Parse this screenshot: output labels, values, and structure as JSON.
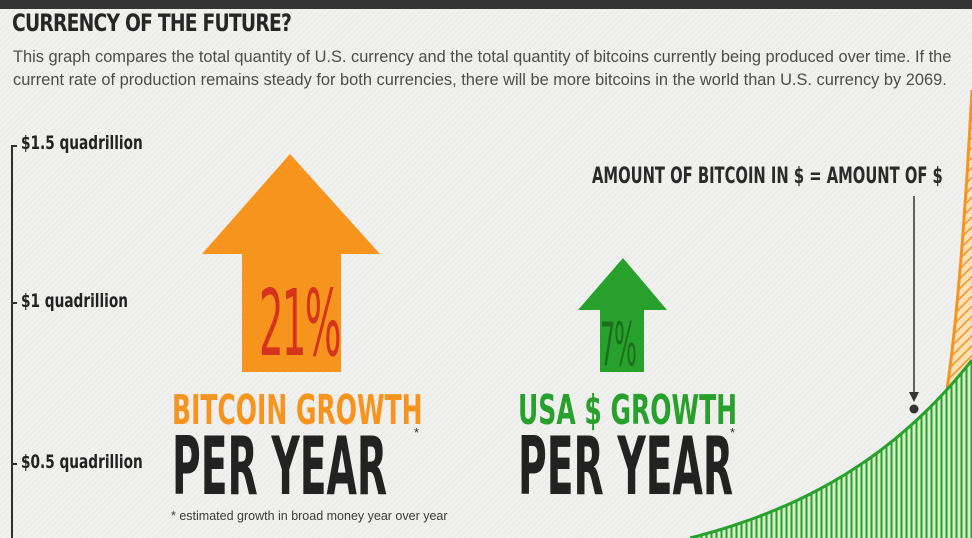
{
  "title": "CURRENCY OF THE FUTURE?",
  "description": "This graph compares the total quantity of U.S. currency and the total quantity of bitcoins currently being produced over time. If the current rate of production remains steady for both currencies, there will be more bitcoins in the world than U.S. currency by 2069.",
  "colors": {
    "bitcoin": "#f7941d",
    "usd": "#27a12b",
    "text": "#222222"
  },
  "chart_data": {
    "type": "area",
    "title": "CURRENCY OF THE FUTURE?",
    "y_ticks": [
      "$1.5 quadrillion",
      "$1 quadrillion",
      "$0.5 quadrillion"
    ],
    "y_tick_values": [
      1.5,
      1.0,
      0.5
    ],
    "ylim": [
      0.3,
      1.7
    ],
    "series": [
      {
        "name": "BITCOIN",
        "growth": "21%",
        "color": "#f7941d",
        "pattern": "diagonal-hatch"
      },
      {
        "name": "USA $",
        "growth": "7%",
        "color": "#27a12b",
        "pattern": "vertical-hatch"
      }
    ],
    "annotation": "AMOUNT OF BITCOIN IN $ = AMOUNT OF $",
    "crossover_value": 0.72
  },
  "bitcoin_panel": {
    "percent": "21%",
    "label_top": "BITCOIN GROWTH",
    "label_bottom": "PER YEAR",
    "asterisk": "*"
  },
  "usd_panel": {
    "percent": "7%",
    "label_top": "USA $ GROWTH",
    "label_bottom": "PER YEAR",
    "asterisk": "*"
  },
  "footnote": "* estimated growth in broad money year over year"
}
